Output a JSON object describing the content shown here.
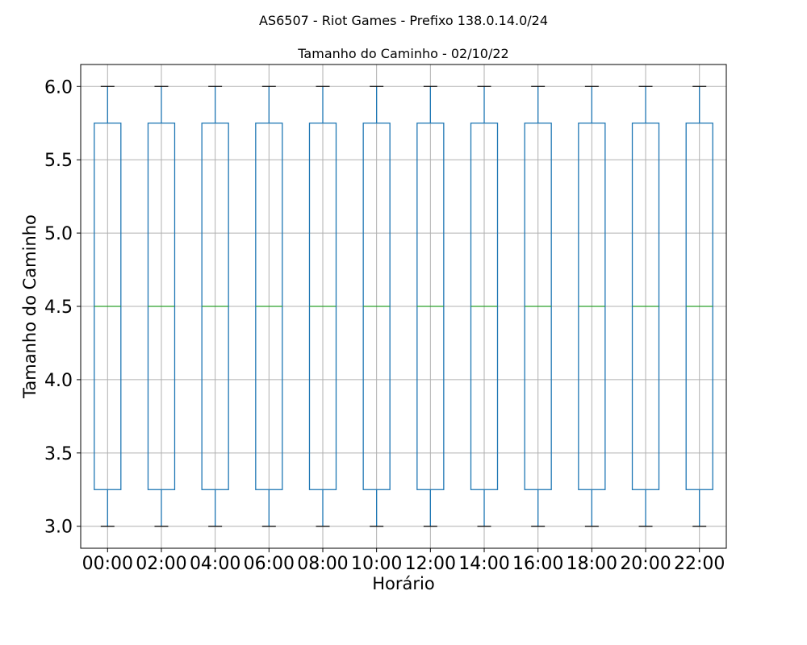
{
  "chart_data": {
    "type": "box",
    "suptitle": "AS6507 - Riot Games - Prefixo 138.0.14.0/24",
    "title": "Tamanho do Caminho - 02/10/22",
    "xlabel": "Horário",
    "ylabel": "Tamanho do Caminho",
    "ylim": [
      2.85,
      6.15
    ],
    "yticks": [
      "3.0",
      "3.5",
      "4.0",
      "4.5",
      "5.0",
      "5.5",
      "6.0"
    ],
    "grid": true,
    "categories": [
      "00:00",
      "02:00",
      "04:00",
      "06:00",
      "08:00",
      "10:00",
      "12:00",
      "14:00",
      "16:00",
      "18:00",
      "20:00",
      "22:00"
    ],
    "boxes": [
      {
        "label": "00:00",
        "min": 3.0,
        "q1": 3.25,
        "median": 4.5,
        "q3": 5.75,
        "max": 6.0
      },
      {
        "label": "02:00",
        "min": 3.0,
        "q1": 3.25,
        "median": 4.5,
        "q3": 5.75,
        "max": 6.0
      },
      {
        "label": "04:00",
        "min": 3.0,
        "q1": 3.25,
        "median": 4.5,
        "q3": 5.75,
        "max": 6.0
      },
      {
        "label": "06:00",
        "min": 3.0,
        "q1": 3.25,
        "median": 4.5,
        "q3": 5.75,
        "max": 6.0
      },
      {
        "label": "08:00",
        "min": 3.0,
        "q1": 3.25,
        "median": 4.5,
        "q3": 5.75,
        "max": 6.0
      },
      {
        "label": "10:00",
        "min": 3.0,
        "q1": 3.25,
        "median": 4.5,
        "q3": 5.75,
        "max": 6.0
      },
      {
        "label": "12:00",
        "min": 3.0,
        "q1": 3.25,
        "median": 4.5,
        "q3": 5.75,
        "max": 6.0
      },
      {
        "label": "14:00",
        "min": 3.0,
        "q1": 3.25,
        "median": 4.5,
        "q3": 5.75,
        "max": 6.0
      },
      {
        "label": "16:00",
        "min": 3.0,
        "q1": 3.25,
        "median": 4.5,
        "q3": 5.75,
        "max": 6.0
      },
      {
        "label": "18:00",
        "min": 3.0,
        "q1": 3.25,
        "median": 4.5,
        "q3": 5.75,
        "max": 6.0
      },
      {
        "label": "20:00",
        "min": 3.0,
        "q1": 3.25,
        "median": 4.5,
        "q3": 5.75,
        "max": 6.0
      },
      {
        "label": "22:00",
        "min": 3.0,
        "q1": 3.25,
        "median": 4.5,
        "q3": 5.75,
        "max": 6.0
      }
    ],
    "colors": {
      "box": "#1f77b4",
      "median": "#2ca02c",
      "whisker_cap": "#000000",
      "grid": "#b0b0b0"
    }
  }
}
